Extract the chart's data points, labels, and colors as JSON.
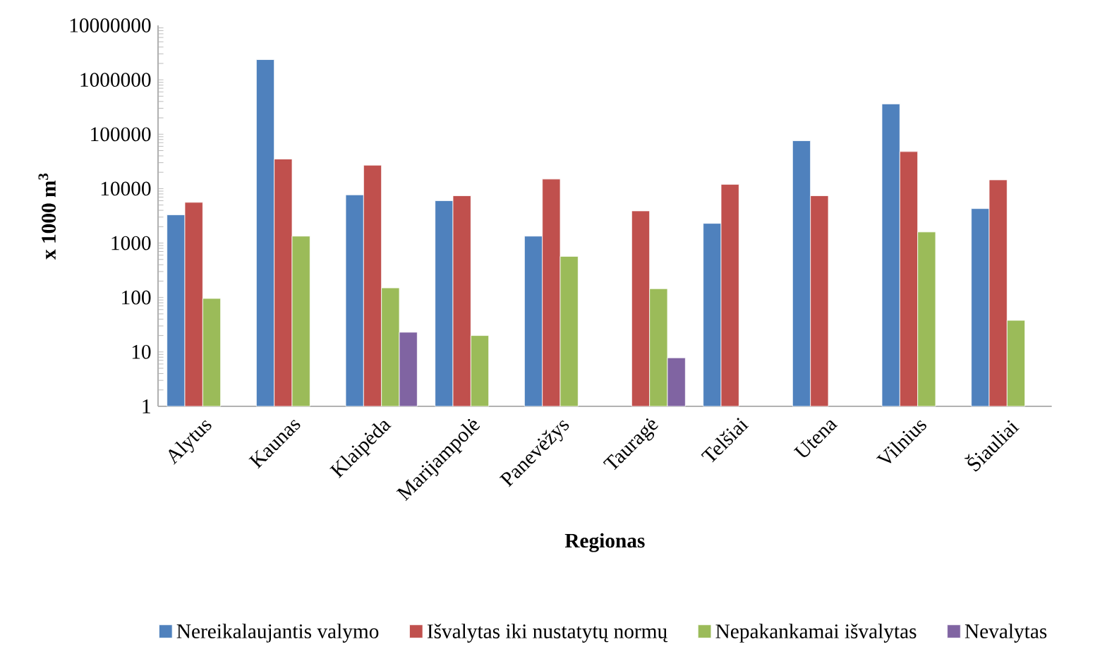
{
  "chart_data": {
    "type": "bar",
    "log": true,
    "legend": "bottom",
    "xlabel": "Regionas",
    "ylabel": "x 1000 m$^{3}$",
    "categories": [
      "Alytus",
      "Kaunas",
      "Klaipėda",
      "Marijampolė",
      "Panevėžys",
      "Tauragė",
      "Telšiai",
      "Utena",
      "Vilnius",
      "Šiauliai"
    ],
    "series": [
      {
        "name": "Nereikalaujantis valymo",
        "color": "#4f81bd",
        "values": [
          3300,
          2350000,
          7700,
          6000,
          1340,
          null,
          2300,
          76000,
          360000,
          4300
        ]
      },
      {
        "name": "Išvalytas iki nustatytų normų",
        "color": "#c0504d",
        "values": [
          5600,
          35000,
          27000,
          7400,
          15000,
          3900,
          12000,
          7400,
          48000,
          14500
        ]
      },
      {
        "name": "Nepakankamai išvalytas",
        "color": "#9bbb59",
        "values": [
          96,
          1340,
          150,
          20,
          570,
          145,
          null,
          null,
          1600,
          38
        ]
      },
      {
        "name": "Nevalytas",
        "color": "#8064a2",
        "values": [
          null,
          null,
          23,
          null,
          null,
          7.8,
          null,
          null,
          null,
          null
        ]
      }
    ],
    "ylim": [
      1,
      10000000
    ],
    "yticks": [
      1,
      10,
      100,
      1000,
      10000,
      100000,
      1000000,
      10000000
    ]
  }
}
